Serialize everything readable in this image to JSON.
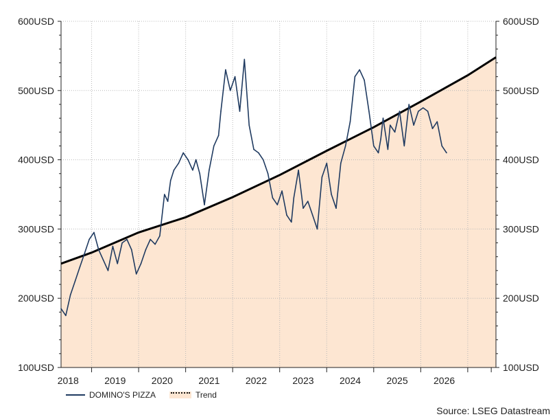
{
  "chart_data": {
    "type": "line",
    "title": "",
    "xlabel": "",
    "ylabel": "",
    "y_unit": "USD",
    "ylim": [
      100,
      600
    ],
    "y_ticks": [
      "100USD",
      "200USD",
      "300USD",
      "400USD",
      "500USD",
      "600USD"
    ],
    "y_tick_values": [
      100,
      200,
      300,
      400,
      500,
      600
    ],
    "xlim": [
      2017.35,
      2026.6
    ],
    "x_ticks": [
      "2018",
      "2019",
      "2020",
      "2021",
      "2022",
      "2023",
      "2024",
      "2025",
      "2026"
    ],
    "grid": true,
    "legend_position": "bottom-left",
    "series": [
      {
        "name": "DOMINO'S PIZZA",
        "color": "#1f3a60",
        "x": [
          2017.35,
          2017.45,
          2017.55,
          2017.65,
          2017.75,
          2017.85,
          2017.95,
          2018.05,
          2018.15,
          2018.25,
          2018.35,
          2018.45,
          2018.55,
          2018.65,
          2018.75,
          2018.85,
          2018.95,
          2019.05,
          2019.15,
          2019.25,
          2019.35,
          2019.45,
          2019.55,
          2019.62,
          2019.68,
          2019.75,
          2019.85,
          2019.95,
          2020.05,
          2020.15,
          2020.22,
          2020.3,
          2020.4,
          2020.5,
          2020.6,
          2020.7,
          2020.75,
          2020.85,
          2020.95,
          2021.05,
          2021.15,
          2021.25,
          2021.35,
          2021.45,
          2021.55,
          2021.65,
          2021.7,
          2021.75,
          2021.85,
          2021.95,
          2022.05,
          2022.15,
          2022.25,
          2022.3,
          2022.4,
          2022.5,
          2022.6,
          2022.7,
          2022.8,
          2022.9,
          2023.0,
          2023.1,
          2023.2,
          2023.3,
          2023.4,
          2023.5,
          2023.6,
          2023.7,
          2023.8,
          2023.9,
          2024.0,
          2024.1,
          2024.15,
          2024.2,
          2024.3,
          2024.35,
          2024.45,
          2024.55,
          2024.65,
          2024.75,
          2024.85,
          2024.95,
          2025.05,
          2025.15,
          2025.25,
          2025.35,
          2025.45,
          2025.55
        ],
        "values": [
          185,
          175,
          205,
          225,
          245,
          265,
          285,
          295,
          270,
          255,
          240,
          275,
          250,
          280,
          285,
          270,
          235,
          250,
          270,
          285,
          278,
          290,
          350,
          340,
          370,
          385,
          395,
          410,
          400,
          385,
          400,
          380,
          335,
          385,
          420,
          435,
          470,
          530,
          500,
          520,
          470,
          545,
          450,
          415,
          410,
          400,
          390,
          380,
          345,
          335,
          355,
          320,
          310,
          345,
          385,
          330,
          340,
          320,
          300,
          375,
          395,
          350,
          330,
          395,
          420,
          455,
          520,
          530,
          515,
          470,
          420,
          410,
          430,
          460,
          415,
          450,
          440,
          470,
          420,
          480,
          450,
          470,
          475,
          470,
          445,
          455,
          420,
          410
        ]
      },
      {
        "name": "Trend",
        "color": "#000000",
        "fill": "#fde6d2",
        "style": "curve",
        "x": [
          2017.35,
          2018.0,
          2019.0,
          2020.0,
          2021.0,
          2022.0,
          2023.0,
          2024.0,
          2025.0,
          2026.0,
          2026.6
        ],
        "values": [
          250,
          266,
          295,
          317,
          346,
          378,
          413,
          447,
          484,
          522,
          548
        ]
      }
    ],
    "source": "Source: LSEG Datastream"
  }
}
